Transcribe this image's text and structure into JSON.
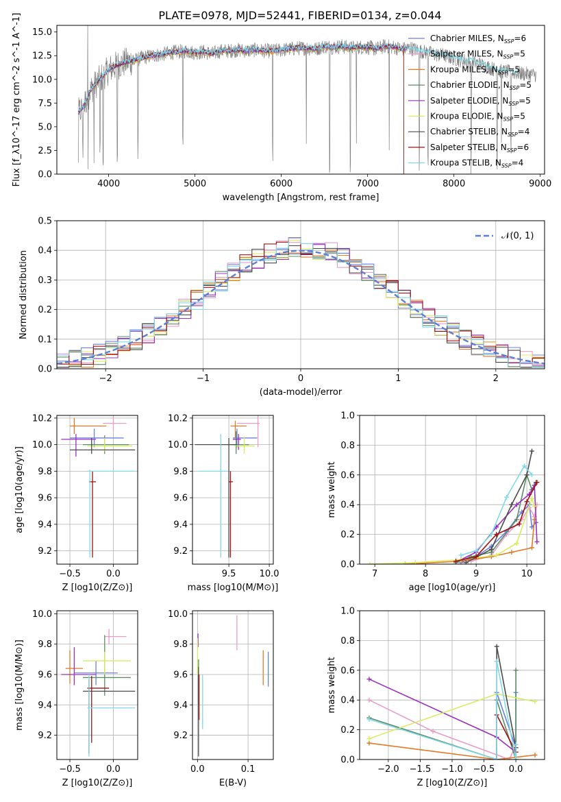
{
  "figure_title": "PLATE=0978, MJD=52441, FIBERID=0134, z=0.044",
  "series_colors": [
    "#6b7fe0",
    "#e89cc8",
    "#e07a28",
    "#5a8c64",
    "#9a30c0",
    "#d8ec60",
    "#4a4a4a",
    "#a01010",
    "#80d8e8"
  ],
  "chart_data": [
    {
      "id": "spectrum",
      "type": "line",
      "title": "PLATE=0978, MJD=52441, FIBERID=0134, z=0.044",
      "xlabel": "wavelength [Angstrom, rest frame]",
      "ylabel": "Flux [f_λ10^-17 erg cm^-2 s^-1 A^-1]",
      "xlim": [
        3400,
        9050
      ],
      "ylim": [
        0,
        15.7
      ],
      "xticks": [
        "4000",
        "5000",
        "6000",
        "7000",
        "8000",
        "9000"
      ],
      "yticks": [
        "0.0",
        "2.5",
        "5.0",
        "7.5",
        "10.0",
        "12.5",
        "15.0"
      ],
      "grid": false,
      "legend_position": "top-right",
      "legend": [
        {
          "label": "Chabrier MILES, N_SSP=6",
          "color": "#6b7fe0"
        },
        {
          "label": "Salpeter MILES, N_SSP=5",
          "color": "#e89cc8"
        },
        {
          "label": "Kroupa MILES, N_SSP=5",
          "color": "#e07a28"
        },
        {
          "label": "Chabrier ELODIE, N_SSP=5",
          "color": "#5a8c64"
        },
        {
          "label": "Salpeter ELODIE, N_SSP=5",
          "color": "#9a30c0"
        },
        {
          "label": "Kroupa ELODIE, N_SSP=5",
          "color": "#d8ec60"
        },
        {
          "label": "Chabrier STELIB, N_SSP=4",
          "color": "#4a4a4a"
        },
        {
          "label": "Salpeter STELIB, N_SSP=6",
          "color": "#a01010"
        },
        {
          "label": "Kroupa STELIB, N_SSP=4",
          "color": "#80d8e8"
        }
      ],
      "data_curve": {
        "x": [
          3650,
          3700,
          3750,
          3800,
          3850,
          3900,
          3950,
          4000,
          4100,
          4200,
          4300,
          4400,
          4500,
          4600,
          4700,
          4800,
          4900,
          5000,
          5100,
          5200,
          5300,
          5400,
          5500,
          5600,
          5700,
          5800,
          5900,
          6000,
          6100,
          6200,
          6300,
          6400,
          6500,
          6600,
          6700,
          6800,
          6900,
          7000,
          7100,
          7200,
          7300,
          7400,
          7500,
          7600,
          7700,
          7800,
          7900,
          8000,
          8100,
          8200,
          8300,
          8400,
          8500,
          8600,
          8700,
          8800,
          8900
        ],
        "y": [
          6.5,
          7.0,
          8.0,
          9.0,
          9.5,
          10.0,
          10.5,
          11.0,
          11.5,
          11.8,
          12.0,
          12.3,
          12.5,
          12.6,
          12.8,
          12.9,
          13.0,
          12.8,
          12.9,
          12.7,
          13.0,
          13.0,
          13.1,
          13.0,
          13.1,
          13.0,
          13.0,
          13.1,
          13.2,
          13.3,
          13.3,
          13.2,
          13.5,
          13.4,
          13.5,
          13.3,
          13.4,
          13.4,
          13.2,
          13.5,
          13.4,
          13.2,
          13.3,
          13.0,
          12.8,
          12.6,
          12.5,
          12.2,
          12.0,
          11.9,
          11.6,
          11.3,
          10.9,
          10.8,
          10.7,
          10.6,
          10.5
        ]
      },
      "dips": [
        3650,
        3700,
        3760,
        3830,
        3900,
        3935,
        4100,
        4340,
        4860,
        5900,
        6290,
        6560,
        6800,
        6870,
        7250,
        7600,
        7700,
        8200,
        8500,
        8550,
        8660
      ]
    },
    {
      "id": "residuals",
      "type": "line",
      "xlabel": "(data-model)/error",
      "ylabel": "Normed distribution",
      "xlim": [
        -2.5,
        2.5
      ],
      "ylim": [
        0,
        0.5
      ],
      "xticks": [
        "−2",
        "−1",
        "0",
        "1",
        "2"
      ],
      "yticks": [
        "0.0",
        "0.1",
        "0.2",
        "0.3",
        "0.4",
        "0.5"
      ],
      "grid": true,
      "legend_position": "top-right",
      "legend": [
        {
          "label": "𝒩(0, 1)",
          "color": "#5b7fd6",
          "style": "dashed"
        }
      ],
      "bin_edges": [
        -2.5,
        -2.375,
        -2.25,
        -2.125,
        -2.0,
        -1.875,
        -1.75,
        -1.625,
        -1.5,
        -1.375,
        -1.25,
        -1.125,
        -1.0,
        -0.875,
        -0.75,
        -0.625,
        -0.5,
        -0.375,
        -0.25,
        -0.125,
        0.0,
        0.125,
        0.25,
        0.375,
        0.5,
        0.625,
        0.75,
        0.875,
        1.0,
        1.125,
        1.25,
        1.375,
        1.5,
        1.625,
        1.75,
        1.875,
        2.0,
        2.125,
        2.25,
        2.375,
        2.5
      ],
      "gaussian": {
        "mean": 0,
        "sigma": 1
      }
    },
    {
      "id": "age-vs-Z",
      "type": "scatter",
      "xlabel": "Z [log10(Z/Z⊙)]",
      "ylabel": "age  [log10(age/yr)]",
      "xlim": [
        -0.65,
        0.28
      ],
      "ylim": [
        9.1,
        10.22
      ],
      "xticks": [
        "−0.5",
        "0.0"
      ],
      "yticks": [
        "9.2",
        "9.4",
        "9.6",
        "9.8",
        "10.0",
        "10.2"
      ],
      "grid": true,
      "points": [
        {
          "x": -0.22,
          "xlo": -0.5,
          "xhi": 0.12,
          "y": 10.05,
          "ylo": 9.98,
          "yhi": 10.12,
          "color": "#6b7fe0"
        },
        {
          "x": 0.0,
          "xlo": -0.12,
          "xhi": 0.15,
          "y": 10.16,
          "ylo": 10.1,
          "yhi": 10.21,
          "color": "#e89cc8"
        },
        {
          "x": -0.45,
          "xlo": -0.5,
          "xhi": -0.08,
          "y": 10.14,
          "ylo": 10.08,
          "yhi": 10.2,
          "color": "#e07a28"
        },
        {
          "x": -0.1,
          "xlo": -0.35,
          "xhi": 0.18,
          "y": 10.0,
          "ylo": 9.93,
          "yhi": 10.07,
          "color": "#5a8c64"
        },
        {
          "x": -0.43,
          "xlo": -0.6,
          "xhi": -0.2,
          "y": 10.04,
          "ylo": 9.91,
          "yhi": 10.08,
          "color": "#9a30c0"
        },
        {
          "x": -0.1,
          "xlo": -0.3,
          "xhi": 0.22,
          "y": 9.99,
          "ylo": 9.95,
          "yhi": 10.05,
          "color": "#d8ec60"
        },
        {
          "x": -0.25,
          "xlo": -0.5,
          "xhi": 0.25,
          "y": 9.96,
          "ylo": 9.93,
          "yhi": 10.05,
          "color": "#4a4a4a"
        },
        {
          "x": -0.24,
          "xlo": -0.28,
          "xhi": -0.2,
          "y": 9.72,
          "ylo": 9.15,
          "yhi": 9.8,
          "color": "#a01010"
        },
        {
          "x": -0.27,
          "xlo": -0.3,
          "xhi": 0.25,
          "y": 9.8,
          "ylo": 9.15,
          "yhi": 9.81,
          "color": "#80d8e8"
        }
      ]
    },
    {
      "id": "age-vs-mass",
      "type": "scatter",
      "xlabel": "mass [log10(M/M⊙)]",
      "ylabel": "",
      "xlim": [
        9.05,
        10.05
      ],
      "ylim": [
        9.1,
        10.22
      ],
      "xticks": [
        "9.5",
        "10.0"
      ],
      "yticks": [
        "9.2",
        "9.4",
        "9.6",
        "9.8",
        "10.0",
        "10.2"
      ],
      "grid": true,
      "points": [
        {
          "x": 9.6,
          "xlo": 9.55,
          "xhi": 9.85,
          "y": 10.05,
          "ylo": 9.98,
          "yhi": 10.12,
          "color": "#6b7fe0"
        },
        {
          "x": 9.86,
          "xlo": 9.6,
          "xhi": 9.88,
          "y": 10.16,
          "ylo": 9.98,
          "yhi": 10.22,
          "color": "#e89cc8"
        },
        {
          "x": 9.58,
          "xlo": 9.52,
          "xhi": 9.72,
          "y": 10.14,
          "ylo": 10.05,
          "yhi": 10.18,
          "color": "#e07a28"
        },
        {
          "x": 9.59,
          "xlo": 9.52,
          "xhi": 9.75,
          "y": 10.0,
          "ylo": 9.93,
          "yhi": 10.1,
          "color": "#5a8c64"
        },
        {
          "x": 9.62,
          "xlo": 9.55,
          "xhi": 9.65,
          "y": 10.04,
          "ylo": 9.96,
          "yhi": 10.08,
          "color": "#9a30c0"
        },
        {
          "x": 9.69,
          "xlo": 9.57,
          "xhi": 9.82,
          "y": 9.99,
          "ylo": 9.93,
          "yhi": 10.06,
          "color": "#d8ec60"
        },
        {
          "x": 9.5,
          "xlo": 9.08,
          "xhi": 9.6,
          "y": 10.0,
          "ylo": 9.15,
          "yhi": 10.05,
          "color": "#4a4a4a"
        },
        {
          "x": 9.52,
          "xlo": 9.5,
          "xhi": 9.55,
          "y": 9.72,
          "ylo": 9.15,
          "yhi": 9.8,
          "color": "#a01010"
        },
        {
          "x": 9.4,
          "xlo": 9.12,
          "xhi": 9.48,
          "y": 9.8,
          "ylo": 9.15,
          "yhi": 10.08,
          "color": "#80d8e8"
        }
      ]
    },
    {
      "id": "mass-weight-vs-age",
      "type": "line",
      "xlabel": "age  [log10(age/yr)]",
      "ylabel": "mass weight",
      "xlim": [
        6.7,
        10.35
      ],
      "ylim": [
        0,
        1
      ],
      "xticks": [
        "7",
        "8",
        "9",
        "10"
      ],
      "yticks": [
        "0.0",
        "0.2",
        "0.4",
        "0.6",
        "0.8",
        "1.0"
      ],
      "grid": true,
      "series": [
        {
          "color": "#6b7fe0",
          "x": [
            8.7,
            9.0,
            9.3,
            9.6,
            9.9,
            10.05,
            10.1,
            10.18
          ],
          "y": [
            0.01,
            0.05,
            0.12,
            0.22,
            0.35,
            0.4,
            0.25,
            0.28
          ]
        },
        {
          "color": "#e89cc8",
          "x": [
            8.9,
            9.3,
            9.6,
            9.9,
            10.05,
            10.15,
            10.2
          ],
          "y": [
            0.02,
            0.06,
            0.2,
            0.3,
            0.38,
            0.32,
            0.4
          ]
        },
        {
          "color": "#e07a28",
          "x": [
            7.6,
            8.7,
            9.3,
            9.7,
            10.1,
            10.15
          ],
          "y": [
            0.0,
            0.02,
            0.05,
            0.08,
            0.11,
            0.3
          ]
        },
        {
          "color": "#5a8c64",
          "x": [
            8.6,
            8.9,
            9.3,
            9.8,
            10.0,
            10.1,
            10.18
          ],
          "y": [
            0.01,
            0.05,
            0.08,
            0.3,
            0.6,
            0.5,
            0.55
          ]
        },
        {
          "color": "#9a30c0",
          "x": [
            8.7,
            9.0,
            9.4,
            9.8,
            10.05,
            10.15,
            10.2
          ],
          "y": [
            0.03,
            0.08,
            0.25,
            0.4,
            0.47,
            0.53,
            0.15
          ]
        },
        {
          "color": "#d8ec60",
          "x": [
            6.9,
            7.8,
            8.7,
            9.4,
            9.8,
            10.1,
            10.15
          ],
          "y": [
            0.0,
            0.01,
            0.03,
            0.06,
            0.14,
            0.44,
            0.39
          ]
        },
        {
          "color": "#4a4a4a",
          "x": [
            8.8,
            9.3,
            9.7,
            10.0,
            10.1
          ],
          "y": [
            0.01,
            0.1,
            0.4,
            0.6,
            0.76
          ]
        },
        {
          "color": "#a01010",
          "x": [
            8.6,
            9.0,
            9.4,
            9.85,
            10.0,
            10.2
          ],
          "y": [
            0.02,
            0.05,
            0.2,
            0.27,
            0.42,
            0.55
          ]
        },
        {
          "color": "#80d8e8",
          "x": [
            8.7,
            9.0,
            9.3,
            9.6,
            9.95,
            10.1
          ],
          "y": [
            0.06,
            0.09,
            0.2,
            0.45,
            0.66,
            0.6
          ]
        }
      ]
    },
    {
      "id": "mass-vs-Z",
      "type": "scatter",
      "xlabel": "Z [log10(Z/Z⊙)]",
      "ylabel": "mass [log10(M/M⊙)]",
      "xlim": [
        -0.65,
        0.28
      ],
      "ylim": [
        9.04,
        10.02
      ],
      "xticks": [
        "−0.5",
        "0.0"
      ],
      "yticks": [
        "9.2",
        "9.4",
        "9.6",
        "9.8",
        "10.0"
      ],
      "grid": true,
      "points": [
        {
          "x": -0.2,
          "xlo": -0.45,
          "xhi": 0.05,
          "y": 9.61,
          "ylo": 9.53,
          "yhi": 9.69,
          "color": "#6b7fe0"
        },
        {
          "x": -0.05,
          "xlo": -0.1,
          "xhi": 0.15,
          "y": 9.85,
          "ylo": 9.8,
          "yhi": 9.9,
          "color": "#e89cc8"
        },
        {
          "x": -0.5,
          "xlo": -0.55,
          "xhi": -0.35,
          "y": 9.64,
          "ylo": 9.54,
          "yhi": 9.76,
          "color": "#e07a28"
        },
        {
          "x": -0.1,
          "xlo": -0.35,
          "xhi": 0.2,
          "y": 9.58,
          "ylo": 9.46,
          "yhi": 9.86,
          "color": "#5a8c64"
        },
        {
          "x": -0.45,
          "xlo": -0.6,
          "xhi": -0.2,
          "y": 9.6,
          "ylo": 9.53,
          "yhi": 9.78,
          "color": "#9a30c0"
        },
        {
          "x": -0.1,
          "xlo": -0.35,
          "xhi": 0.2,
          "y": 9.69,
          "ylo": 9.6,
          "yhi": 9.75,
          "color": "#d8ec60"
        },
        {
          "x": -0.28,
          "xlo": -0.35,
          "xhi": 0.25,
          "y": 9.49,
          "ylo": 9.08,
          "yhi": 9.57,
          "color": "#4a4a4a"
        },
        {
          "x": -0.25,
          "xlo": -0.3,
          "xhi": -0.05,
          "y": 9.51,
          "ylo": 9.15,
          "yhi": 9.59,
          "color": "#a01010"
        },
        {
          "x": -0.28,
          "xlo": -0.3,
          "xhi": 0.25,
          "y": 9.38,
          "ylo": 9.06,
          "yhi": 9.6,
          "color": "#80d8e8"
        }
      ]
    },
    {
      "id": "mass-vs-EBV",
      "type": "scatter",
      "xlabel": "E(B-V)",
      "ylabel": "",
      "xlim": [
        -0.01,
        0.15
      ],
      "ylim": [
        9.04,
        10.02
      ],
      "xticks": [
        "0.0",
        "0.1"
      ],
      "yticks": [
        "9.2",
        "9.4",
        "9.6",
        "9.8",
        "10.0"
      ],
      "grid": true,
      "points": [
        {
          "x": 0.14,
          "ylo": 9.52,
          "yhi": 9.75,
          "color": "#6b7fe0"
        },
        {
          "x": 0.078,
          "ylo": 9.76,
          "yhi": 9.99,
          "color": "#e89cc8"
        },
        {
          "x": 0.13,
          "ylo": 9.53,
          "yhi": 9.76,
          "color": "#e07a28"
        },
        {
          "x": 0.002,
          "ylo": 9.4,
          "yhi": 9.7,
          "color": "#5a8c64"
        },
        {
          "x": 0.001,
          "ylo": 9.78,
          "yhi": 9.87,
          "color": "#9a30c0"
        },
        {
          "x": 0.0,
          "ylo": 9.6,
          "yhi": 9.84,
          "color": "#d8ec60"
        },
        {
          "x": 0.002,
          "ylo": 9.06,
          "yhi": 9.65,
          "color": "#4a4a4a"
        },
        {
          "x": 0.003,
          "ylo": 9.3,
          "yhi": 9.6,
          "color": "#a01010"
        },
        {
          "x": 0.01,
          "ylo": 9.24,
          "yhi": 9.6,
          "color": "#80d8e8"
        }
      ]
    },
    {
      "id": "mass-weight-vs-Z",
      "type": "line",
      "xlabel": "Z [log10(Z/Z⊙)]",
      "ylabel": "mass weight",
      "xlim": [
        -2.45,
        0.45
      ],
      "ylim": [
        0,
        1
      ],
      "xticks": [
        "−2.0",
        "−1.5",
        "−1.0",
        "−0.5",
        "0.0"
      ],
      "yticks": [
        "0.0",
        "0.2",
        "0.4",
        "0.6",
        "0.8",
        "1.0"
      ],
      "grid": true,
      "series": [
        {
          "color": "#6b7fe0",
          "x": [
            -0.3,
            -0.3,
            0.0,
            0.0
          ],
          "y": [
            0.0,
            0.45,
            0.08,
            0.45
          ]
        },
        {
          "color": "#e89cc8",
          "x": [
            -2.3,
            -1.3,
            -0.1,
            0.0
          ],
          "y": [
            0.4,
            0.19,
            0.0,
            0.1
          ]
        },
        {
          "color": "#e07a28",
          "x": [
            -2.3,
            -0.3,
            0.3
          ],
          "y": [
            0.11,
            0.0,
            0.03
          ]
        },
        {
          "color": "#5a8c64",
          "x": [
            -2.3,
            -0.3,
            -0.3,
            0.0,
            0.0
          ],
          "y": [
            0.28,
            0.0,
            0.4,
            0.0,
            0.6
          ]
        },
        {
          "color": "#9a30c0",
          "x": [
            -2.3,
            -0.3,
            0.0
          ],
          "y": [
            0.54,
            0.15,
            0.05
          ]
        },
        {
          "color": "#d8ec60",
          "x": [
            -2.3,
            -0.3,
            0.3
          ],
          "y": [
            0.14,
            0.44,
            0.39
          ]
        },
        {
          "color": "#4a4a4a",
          "x": [
            -0.3,
            -0.3,
            0.0
          ],
          "y": [
            0.0,
            0.76,
            0.08
          ]
        },
        {
          "color": "#a01010",
          "x": [
            -0.3,
            -0.3,
            0.0
          ],
          "y": [
            0.0,
            0.3,
            0.05
          ]
        },
        {
          "color": "#80d8e8",
          "x": [
            -2.3,
            -0.3,
            -0.3,
            0.0,
            0.0
          ],
          "y": [
            0.27,
            0.0,
            0.66,
            0.0,
            0.1
          ]
        }
      ]
    }
  ]
}
